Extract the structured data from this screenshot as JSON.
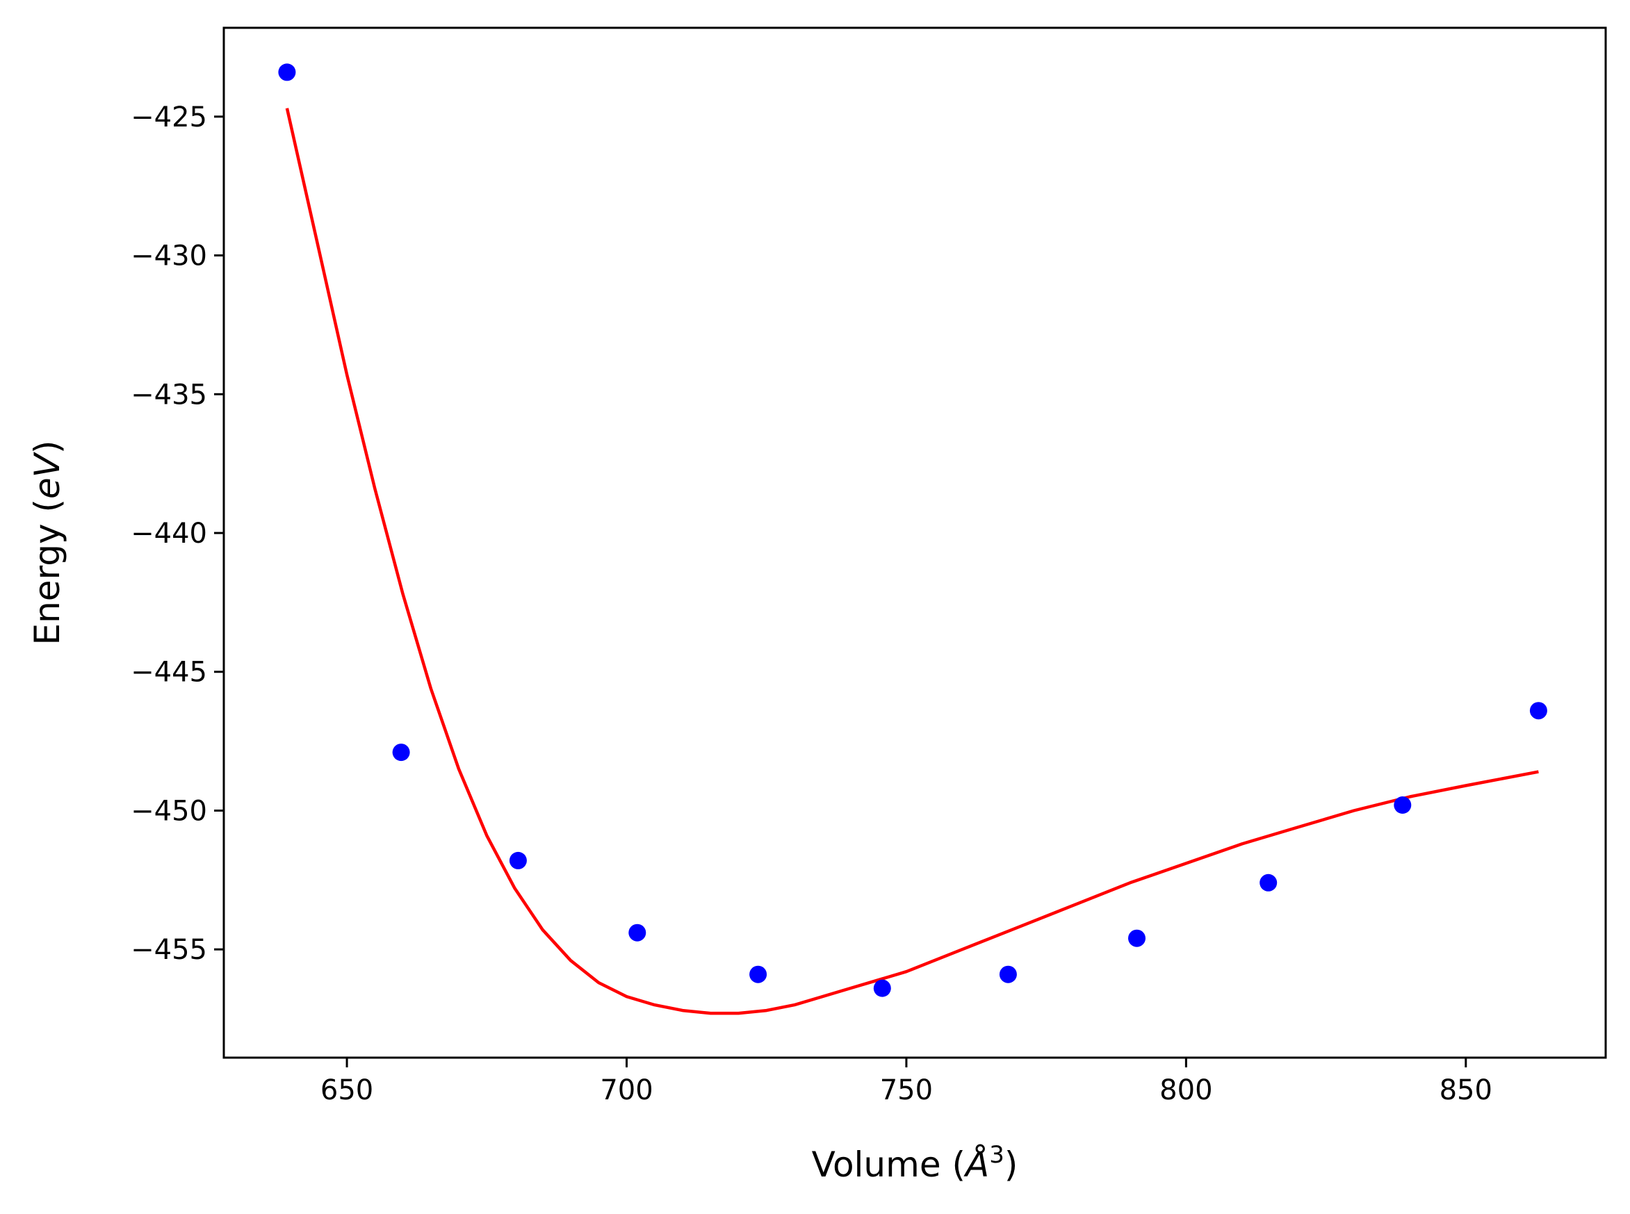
{
  "chart_data": {
    "type": "scatter",
    "title": "",
    "xlabel": "Volume",
    "ylabel": "Energy",
    "xlabel_unit": "Å",
    "xlabel_unit_sup": "3",
    "ylabel_unit": "eV",
    "xlim": [
      628,
      875
    ],
    "ylim": [
      -458.9,
      -421.8
    ],
    "x_ticks": [
      650,
      700,
      750,
      800,
      850
    ],
    "y_ticks": [
      -425,
      -430,
      -435,
      -440,
      -445,
      -450,
      -455
    ],
    "x_tick_labels": [
      "650",
      "700",
      "750",
      "800",
      "850"
    ],
    "y_tick_labels": [
      "−425",
      "−430",
      "−435",
      "−440",
      "−445",
      "−450",
      "−455"
    ],
    "grid": false,
    "series": [
      {
        "kind": "scatter",
        "color": "#0000ff",
        "x": [
          639.3,
          659.7,
          680.6,
          701.9,
          723.5,
          745.7,
          768.2,
          791.2,
          814.7,
          838.7,
          863.0
        ],
        "y": [
          -423.4,
          -447.9,
          -451.8,
          -454.4,
          -455.9,
          -456.4,
          -455.9,
          -454.6,
          -452.6,
          -449.8,
          -446.4
        ]
      },
      {
        "kind": "line",
        "color": "#ff0000",
        "x": [
          639.3,
          645,
          650,
          655,
          660,
          665,
          670,
          675,
          680,
          685,
          690,
          695,
          700,
          705,
          710,
          715,
          718,
          720,
          725,
          730,
          735,
          740,
          745,
          750,
          760,
          770,
          780,
          790,
          800,
          810,
          820,
          830,
          840,
          850,
          863.0
        ],
        "y": [
          -424.7,
          -429.8,
          -434.3,
          -438.4,
          -442.2,
          -445.6,
          -448.5,
          -450.9,
          -452.8,
          -454.3,
          -455.4,
          -456.2,
          -456.7,
          -457.0,
          -457.2,
          -457.3,
          -457.3,
          -457.3,
          -457.2,
          -457.0,
          -456.7,
          -456.4,
          -456.1,
          -455.8,
          -455.0,
          -454.2,
          -453.4,
          -452.6,
          -451.9,
          -451.2,
          -450.6,
          -450.0,
          -449.5,
          -449.1,
          -448.6
        ]
      }
    ]
  }
}
